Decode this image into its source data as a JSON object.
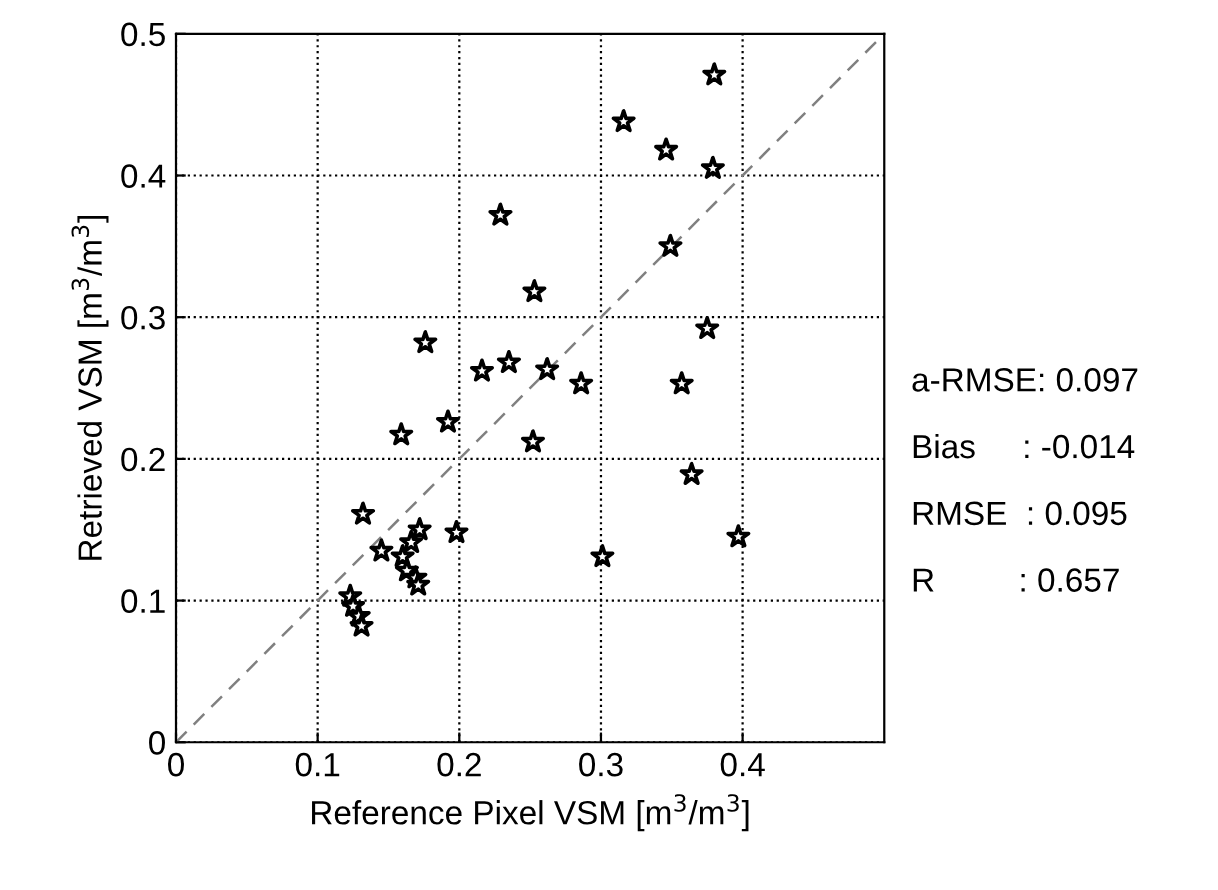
{
  "chart_data": {
    "type": "scatter",
    "xlabel": "Reference Pixel VSM [m$^{3}$/m$^{3}$]",
    "ylabel": "Retrieved VSM [m$^{3}$/m$^{3}$]",
    "xlim": [
      0,
      0.5
    ],
    "ylim": [
      0,
      0.5
    ],
    "xticks": [
      0,
      0.1,
      0.2,
      0.3,
      0.4
    ],
    "yticks": [
      0,
      0.1,
      0.2,
      0.3,
      0.4,
      0.5
    ],
    "grid": true,
    "marker": "star",
    "annotations": [
      "a-RMSE: 0.097",
      "Bias     : -0.014",
      "RMSE  : 0.095",
      "R         : 0.657"
    ],
    "series": [
      {
        "color": "#000000",
        "x": [
          0.229,
          0.253,
          0.176,
          0.216,
          0.235,
          0.262,
          0.286,
          0.192,
          0.159,
          0.252,
          0.38,
          0.316,
          0.346,
          0.379,
          0.349,
          0.375,
          0.357,
          0.364,
          0.397,
          0.301,
          0.132,
          0.172,
          0.198,
          0.145,
          0.166,
          0.16,
          0.163,
          0.169,
          0.171,
          0.123,
          0.125,
          0.129,
          0.131
        ],
        "values": [
          0.372,
          0.318,
          0.282,
          0.262,
          0.268,
          0.263,
          0.253,
          0.226,
          0.217,
          0.212,
          0.471,
          0.438,
          0.418,
          0.405,
          0.35,
          0.292,
          0.253,
          0.189,
          0.145,
          0.131,
          0.161,
          0.15,
          0.148,
          0.135,
          0.141,
          0.131,
          0.121,
          0.116,
          0.111,
          0.103,
          0.096,
          0.089,
          0.082
        ]
      },
      {
        "type": "line",
        "color": "#808080",
        "line_style": "dashed",
        "marker": "none",
        "x": [
          0,
          0.5
        ],
        "values": [
          0,
          0.5
        ]
      }
    ]
  }
}
